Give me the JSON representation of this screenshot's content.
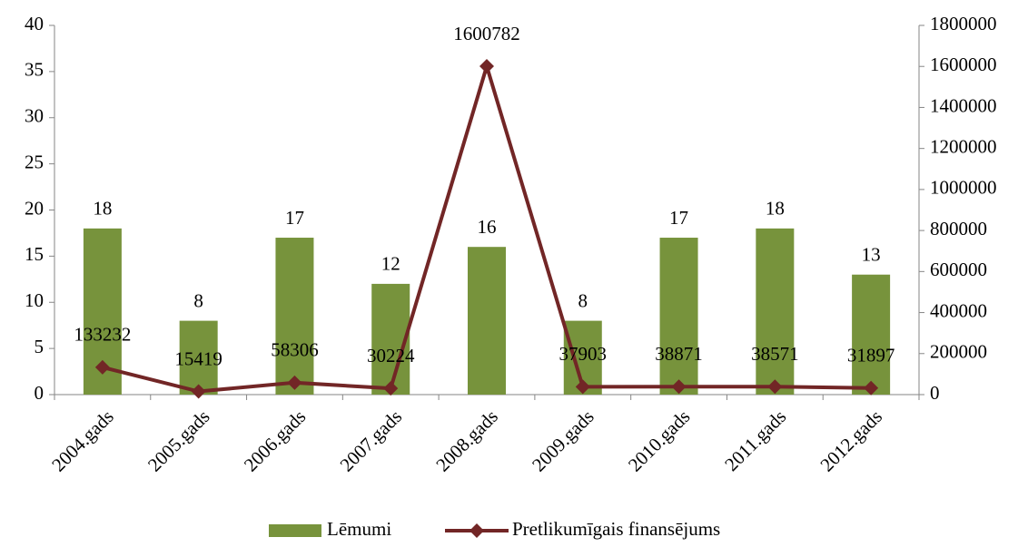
{
  "chart_data": {
    "type": "bar",
    "categories": [
      "2004.gads",
      "2005.gads",
      "2006.gads",
      "2007.gads",
      "2008.gads",
      "2009.gads",
      "2010.gads",
      "2011.gads",
      "2012.gads"
    ],
    "series": [
      {
        "name": "Lēmumi",
        "type": "bar",
        "color": "#77933c",
        "values": [
          18,
          8,
          17,
          12,
          16,
          8,
          17,
          18,
          13
        ]
      },
      {
        "name": "Pretlikumīgais finansējums",
        "type": "line",
        "axis": "y2",
        "color": "#722626",
        "values": [
          133232,
          15419,
          58306,
          30224,
          1600782,
          37903,
          38871,
          38571,
          31897
        ]
      }
    ],
    "ylim": [
      0,
      40
    ],
    "yticks": [
      0,
      5,
      10,
      15,
      20,
      25,
      30,
      35,
      40
    ],
    "y2lim": [
      0,
      1800000
    ],
    "y2ticks": [
      0,
      200000,
      400000,
      600000,
      800000,
      1000000,
      1200000,
      1400000,
      1600000,
      1800000
    ],
    "legend": "bottom"
  }
}
